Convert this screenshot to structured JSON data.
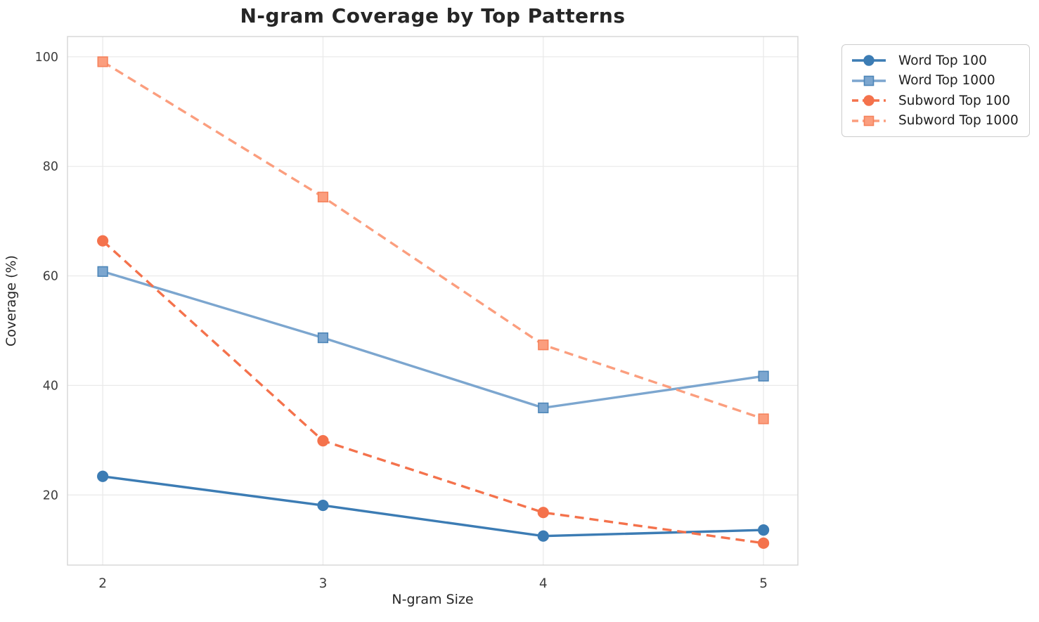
{
  "title": "N-gram Coverage by Top Patterns",
  "chart_data": {
    "type": "line",
    "title": "N-gram Coverage by Top Patterns",
    "xlabel": "N-gram Size",
    "ylabel": "Coverage (%)",
    "x": [
      2,
      3,
      4,
      5
    ],
    "xticks": [
      "2",
      "3",
      "4",
      "5"
    ],
    "yticks": [
      "20",
      "40",
      "60",
      "80",
      "100"
    ],
    "ytick_values": [
      20,
      40,
      60,
      80,
      100
    ],
    "xlim": [
      1.84,
      5.156
    ],
    "ylim": [
      7.2,
      103.7
    ],
    "grid": true,
    "legend_position": "outside-upper-right",
    "series": [
      {
        "name": "Word Top 100",
        "values": [
          23.4,
          18.1,
          12.5,
          13.6
        ],
        "color": "#3c7cb4",
        "edge_color": "#3c7cb4",
        "marker": "circle",
        "line_style": "solid"
      },
      {
        "name": "Word Top 1000",
        "values": [
          60.8,
          48.7,
          35.9,
          41.7
        ],
        "color": "#7ca6cf",
        "edge_color": "#4d86b8",
        "marker": "square",
        "line_style": "solid"
      },
      {
        "name": "Subword Top 100",
        "values": [
          66.4,
          29.9,
          16.8,
          11.2
        ],
        "color": "#f4724c",
        "edge_color": "#f4724c",
        "marker": "circle",
        "line_style": "dashed"
      },
      {
        "name": "Subword Top 1000",
        "values": [
          99.1,
          74.4,
          47.4,
          33.9
        ],
        "color": "#fb9e7e",
        "edge_color": "#f5825c",
        "marker": "square",
        "line_style": "dashed"
      }
    ],
    "style": {
      "grid_color": "#e9e9e9",
      "spine_color": "#d5d5d5",
      "tick_label_color": "#3d3d3d",
      "axis_label_color": "#262626",
      "title_color": "#262626",
      "background": "#ffffff"
    }
  }
}
